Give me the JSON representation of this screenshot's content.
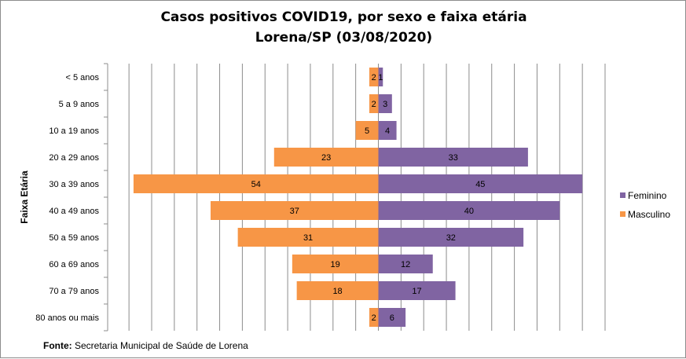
{
  "chart_data": {
    "type": "bar",
    "orientation": "horizontal",
    "title": "Casos positivos COVID19, por sexo e faixa etária",
    "subtitle": "Lorena/SP (03/08/2020)",
    "ylabel": "Faixa Etária",
    "categories": [
      "< 5 anos",
      "5 a 9 anos",
      "10 a 19 anos",
      "20 a 29 anos",
      "30 a 39 anos",
      "40 a 49 anos",
      "50 a 59 anos",
      "60 a 69 anos ",
      "70 a 79 anos",
      "80 anos ou mais"
    ],
    "series": [
      {
        "name": "Feminino",
        "values": [
          1,
          3,
          4,
          33,
          45,
          40,
          32,
          12,
          17,
          6
        ],
        "color": "#8064a2"
      },
      {
        "name": "Masculino",
        "values": [
          2,
          2,
          5,
          23,
          54,
          37,
          31,
          19,
          18,
          2
        ],
        "color": "#f79646"
      }
    ],
    "xlim": [
      -55,
      50
    ],
    "grid": true,
    "legend": "right"
  },
  "source": {
    "label": "Fonte:",
    "text": " Secretaria Municipal de Saúde de Lorena"
  }
}
